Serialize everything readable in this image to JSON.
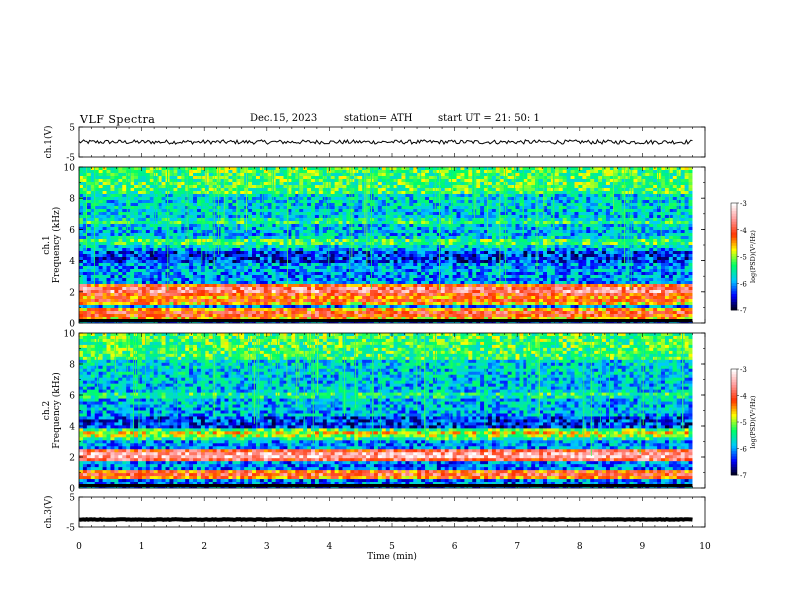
{
  "header": {
    "title": "VLF  Spectra",
    "date": "Dec.15, 2023",
    "station": "station= ATH",
    "start": "start  UT  =   21: 50: 1"
  },
  "chart_data": {
    "type": "heatmap",
    "x": {
      "label": "Time  (min)",
      "range": [
        0,
        10
      ],
      "ticks": [
        "0",
        "1",
        "2",
        "3",
        "4",
        "5",
        "6",
        "7",
        "8",
        "9",
        "10"
      ]
    },
    "panels": [
      {
        "id": "ch1-waveform",
        "type": "line",
        "ylabel": "ch.1(V)",
        "ylim": [
          -5,
          5
        ],
        "yticks": [
          "5",
          "-5"
        ],
        "trace_level": 0,
        "trace_noise": 0.7,
        "data_end_min": 9.8
      },
      {
        "id": "ch1-spectrogram",
        "type": "heatmap",
        "ylabel_line1": "ch.1",
        "ylabel_line2": "Frequency (kHz)",
        "ylim": [
          0,
          10
        ],
        "yticks": [
          "0",
          "2",
          "4",
          "6",
          "8",
          "10"
        ],
        "bands": [
          {
            "center_khz": 2.1,
            "level": 0.9
          },
          {
            "center_khz": 1.5,
            "level": 0.75
          },
          {
            "center_khz": 0.6,
            "level": 0.8
          },
          {
            "center_khz": 5.2,
            "level": 0.5
          },
          {
            "center_khz": 6.5,
            "level": 0.45
          }
        ],
        "data_end_min": 9.8
      },
      {
        "id": "ch2-spectrogram",
        "type": "heatmap",
        "ylabel_line1": "ch.2",
        "ylabel_line2": "Frequency (kHz)",
        "ylim": [
          0,
          10
        ],
        "yticks": [
          "0",
          "2",
          "4",
          "6",
          "8",
          "10"
        ],
        "bands": [
          {
            "center_khz": 2.1,
            "level": 0.95
          },
          {
            "center_khz": 3.5,
            "level": 0.6
          },
          {
            "center_khz": 0.9,
            "level": 0.8
          },
          {
            "center_khz": 6.0,
            "level": 0.45
          }
        ],
        "data_end_min": 9.8
      },
      {
        "id": "ch3-waveform",
        "type": "line",
        "ylabel": "ch.3(V)",
        "ylim": [
          -5,
          5
        ],
        "yticks": [
          "5",
          "-5"
        ],
        "trace_level": -2.5,
        "trace_noise": 0.1,
        "data_end_min": 9.8
      }
    ],
    "colorbar": {
      "label": "log(PSD)(V²/Hz)",
      "range": [
        -7,
        -3
      ],
      "ticks": [
        "-3",
        "-4",
        "-5",
        "-6",
        "-7"
      ],
      "colors": [
        "#000000",
        "#0000ff",
        "#00c8ff",
        "#00ff66",
        "#ffff00",
        "#ff3300",
        "#ff9999",
        "#ffffff"
      ]
    }
  }
}
